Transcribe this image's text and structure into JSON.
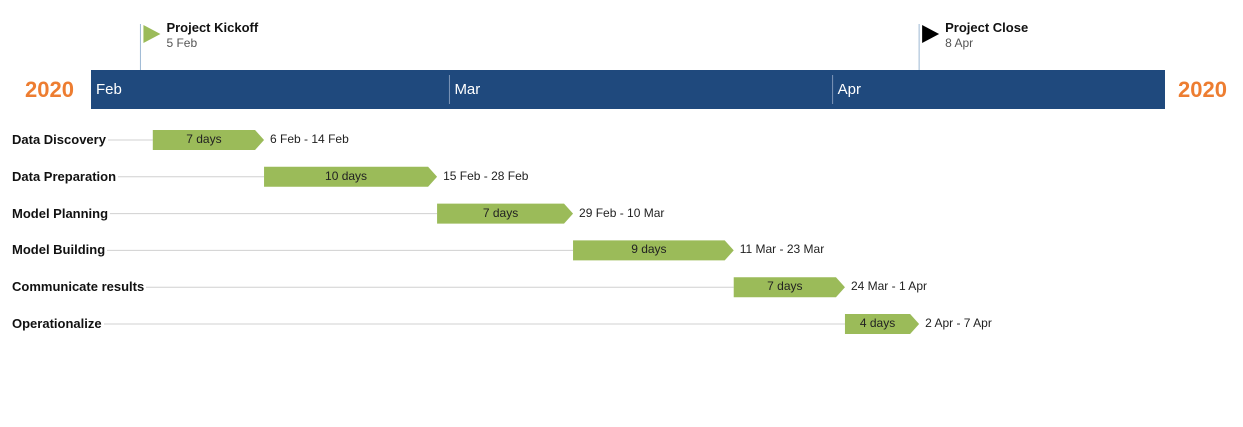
{
  "chart_data": {
    "type": "gantt",
    "year": "2020",
    "months": [
      "Feb",
      "Mar",
      "Apr"
    ],
    "colors": {
      "band": "#1f497d",
      "task": "#9bbb59",
      "year": "#ed7d31",
      "milestone_start": "#9bbb59",
      "milestone_end": "#000000"
    },
    "milestones": [
      {
        "name": "Project Kickoff",
        "date_label": "5 Feb",
        "date": "2020-02-05",
        "icon": "green-flag"
      },
      {
        "name": "Project Close",
        "date_label": "8 Apr",
        "date": "2020-04-08",
        "icon": "black-flag"
      }
    ],
    "tasks": [
      {
        "name": "Data Discovery",
        "start": "2020-02-06",
        "end": "2020-02-14",
        "duration": "7 days",
        "range": "6 Feb - 14 Feb"
      },
      {
        "name": "Data Preparation",
        "start": "2020-02-15",
        "end": "2020-02-28",
        "duration": "10 days",
        "range": "15 Feb - 28 Feb"
      },
      {
        "name": "Model Planning",
        "start": "2020-02-29",
        "end": "2020-03-10",
        "duration": "7 days",
        "range": "29 Feb - 10 Mar"
      },
      {
        "name": "Model Building",
        "start": "2020-03-11",
        "end": "2020-03-23",
        "duration": "9 days",
        "range": "11 Mar - 23 Mar"
      },
      {
        "name": "Communicate results",
        "start": "2020-03-24",
        "end": "2020-04-01",
        "duration": "7 days",
        "range": "24 Mar - 1 Apr"
      },
      {
        "name": "Operationalize",
        "start": "2020-04-02",
        "end": "2020-04-07",
        "duration": "4 days",
        "range": "2 Apr - 7 Apr"
      }
    ]
  }
}
